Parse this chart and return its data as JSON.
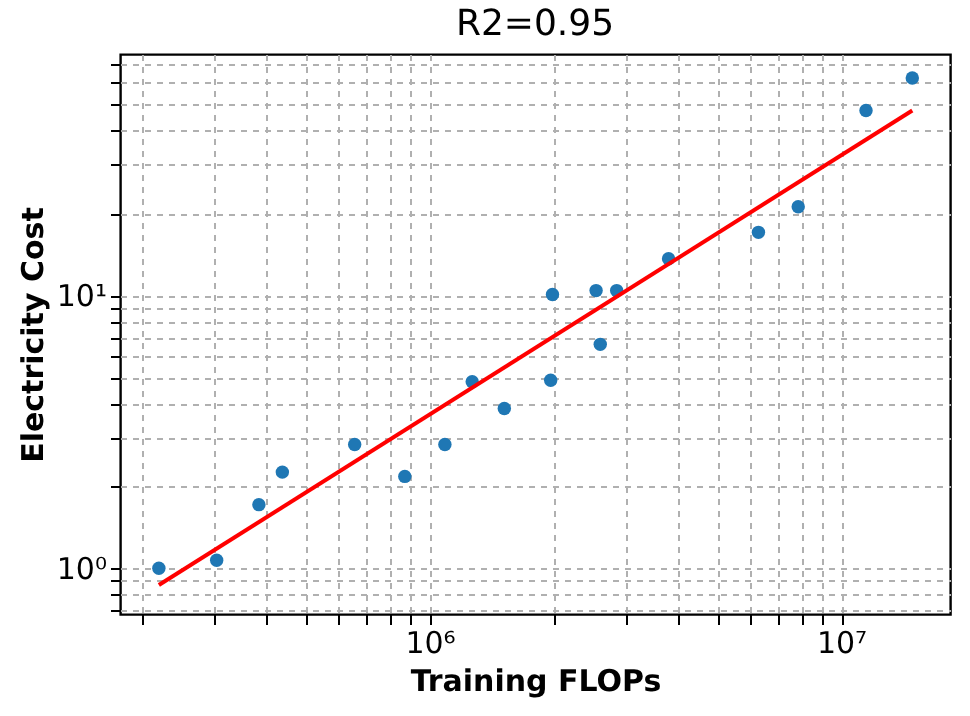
{
  "chart_data": {
    "type": "scatter",
    "title": "R2=0.95",
    "xlabel": "Training FLOPs",
    "ylabel": "Electricity Cost",
    "log": "xy",
    "grid": true,
    "marker": "circle",
    "xlim": [
      177000,
      18400000
    ],
    "ylim": [
      0.68,
      76.5
    ],
    "xticks": [
      {
        "value": 200000,
        "label": null
      },
      {
        "value": 300000,
        "label": null
      },
      {
        "value": 400000,
        "label": null
      },
      {
        "value": 500000,
        "label": null
      },
      {
        "value": 600000,
        "label": null
      },
      {
        "value": 700000,
        "label": null
      },
      {
        "value": 800000,
        "label": null
      },
      {
        "value": 900000,
        "label": null
      },
      {
        "value": 1000000,
        "label": "10⁶"
      },
      {
        "value": 2000000,
        "label": null
      },
      {
        "value": 3000000,
        "label": null
      },
      {
        "value": 4000000,
        "label": null
      },
      {
        "value": 5000000,
        "label": null
      },
      {
        "value": 6000000,
        "label": null
      },
      {
        "value": 7000000,
        "label": null
      },
      {
        "value": 8000000,
        "label": null
      },
      {
        "value": 9000000,
        "label": null
      },
      {
        "value": 10000000,
        "label": "10⁷"
      }
    ],
    "yticks": [
      {
        "value": 0.7,
        "label": null
      },
      {
        "value": 0.8,
        "label": null
      },
      {
        "value": 0.9,
        "label": null
      },
      {
        "value": 1,
        "label": "10⁰"
      },
      {
        "value": 2,
        "label": null
      },
      {
        "value": 3,
        "label": null
      },
      {
        "value": 4,
        "label": null
      },
      {
        "value": 5,
        "label": null
      },
      {
        "value": 6,
        "label": null
      },
      {
        "value": 7,
        "label": null
      },
      {
        "value": 8,
        "label": null
      },
      {
        "value": 9,
        "label": null
      },
      {
        "value": 10,
        "label": "10¹"
      },
      {
        "value": 20,
        "label": null
      },
      {
        "value": 30,
        "label": null
      },
      {
        "value": 40,
        "label": null
      },
      {
        "value": 50,
        "label": null
      },
      {
        "value": 60,
        "label": null
      },
      {
        "value": 70,
        "label": null
      }
    ],
    "series": [
      {
        "color": "#1f77b4",
        "x": [
          220000,
          304000,
          385000,
          439000,
          658000,
          871000,
          1090000,
          1270000,
          1520000,
          1970000,
          1990000,
          2540000,
          2600000,
          2850000,
          3810000,
          6300000,
          7870000,
          11500000,
          14900000
        ],
        "values": [
          1.0,
          1.07,
          1.71,
          2.25,
          2.84,
          2.17,
          2.84,
          4.82,
          3.85,
          4.88,
          10.07,
          10.4,
          6.61,
          10.4,
          13.6,
          17.0,
          21.1,
          47.5,
          62.5
        ]
      },
      {
        "type": "line",
        "color": "#ff0000",
        "line_style": "solid",
        "marker": "none",
        "x": [
          220000,
          14900000
        ],
        "values": [
          0.868,
          47.5
        ]
      }
    ]
  }
}
